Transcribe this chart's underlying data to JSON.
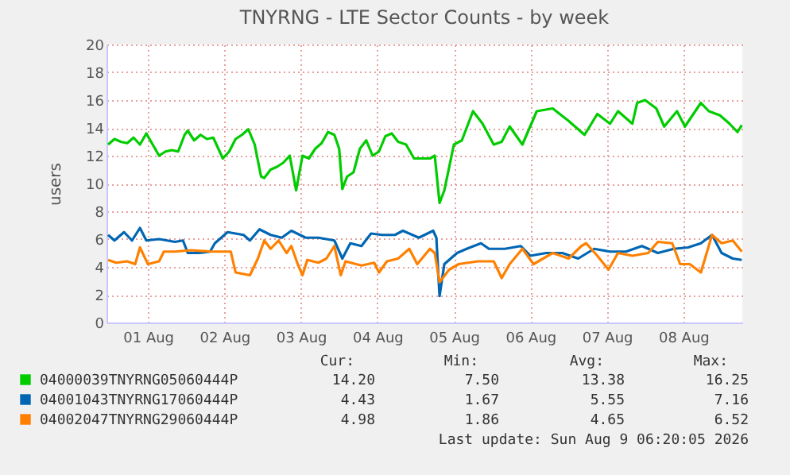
{
  "chart_data": {
    "type": "line",
    "title": "TNYRNG - LTE Sector Counts - by week",
    "ylabel": "users",
    "xlim": [
      "2026-07-31T23:00",
      "2026-08-09T06:30"
    ],
    "xticks": [
      {
        "value": "2026-08-01T12:00",
        "label": "01 Aug"
      },
      {
        "value": "2026-08-02T12:00",
        "label": "02 Aug"
      },
      {
        "value": "2026-08-03T12:00",
        "label": "03 Aug"
      },
      {
        "value": "2026-08-04T12:00",
        "label": "04 Aug"
      },
      {
        "value": "2026-08-05T12:00",
        "label": "05 Aug"
      },
      {
        "value": "2026-08-06T12:00",
        "label": "06 Aug"
      },
      {
        "value": "2026-08-07T12:00",
        "label": "07 Aug"
      },
      {
        "value": "2026-08-08T12:00",
        "label": "08 Aug"
      }
    ],
    "ylim": [
      0,
      20
    ],
    "yticks": [
      0,
      2,
      4,
      6,
      8,
      10,
      12,
      14,
      16,
      18,
      20
    ],
    "grid": true,
    "legend": "bottom",
    "marker": "none",
    "line_style": "solid",
    "series": [
      {
        "name": "04000039TNYRNG05060444P",
        "color": "#00cc00",
        "x": [
          "2026-07-31T23:30",
          "2026-08-01T01:30",
          "2026-08-01T03:30",
          "2026-08-01T05:30",
          "2026-08-01T07:30",
          "2026-08-01T09:30",
          "2026-08-01T11:30",
          "2026-08-01T13:30",
          "2026-08-01T15:30",
          "2026-08-01T17:30",
          "2026-08-01T19:30",
          "2026-08-01T21:30",
          "2026-08-01T23:30",
          "2026-08-02T00:30",
          "2026-08-02T02:30",
          "2026-08-02T04:30",
          "2026-08-02T06:30",
          "2026-08-02T08:30",
          "2026-08-02T11:30",
          "2026-08-02T13:30",
          "2026-08-02T15:30",
          "2026-08-02T17:30",
          "2026-08-02T19:30",
          "2026-08-02T21:30",
          "2026-08-02T23:30",
          "2026-08-03T00:30",
          "2026-08-03T02:30",
          "2026-08-03T04:30",
          "2026-08-03T06:30",
          "2026-08-03T08:30",
          "2026-08-03T10:30",
          "2026-08-03T12:30",
          "2026-08-03T14:30",
          "2026-08-03T16:30",
          "2026-08-03T18:30",
          "2026-08-03T20:30",
          "2026-08-03T22:30",
          "2026-08-04T00:00",
          "2026-08-04T01:00",
          "2026-08-04T02:30",
          "2026-08-04T04:30",
          "2026-08-04T06:30",
          "2026-08-04T08:30",
          "2026-08-04T10:30",
          "2026-08-04T12:30",
          "2026-08-04T14:30",
          "2026-08-04T16:30",
          "2026-08-04T18:30",
          "2026-08-04T21:00",
          "2026-08-04T23:30",
          "2026-08-05T04:30",
          "2026-08-05T06:00",
          "2026-08-05T07:30",
          "2026-08-05T09:00",
          "2026-08-05T12:00",
          "2026-08-05T14:30",
          "2026-08-05T18:00",
          "2026-08-05T21:00",
          "2026-08-06T00:30",
          "2026-08-06T03:00",
          "2026-08-06T05:30",
          "2026-08-06T09:30",
          "2026-08-06T14:00",
          "2026-08-06T19:00",
          "2026-08-07T00:00",
          "2026-08-07T05:00",
          "2026-08-07T09:00",
          "2026-08-07T13:00",
          "2026-08-07T15:30",
          "2026-08-07T20:00",
          "2026-08-07T21:30",
          "2026-08-08T00:00",
          "2026-08-08T03:30",
          "2026-08-08T06:00",
          "2026-08-08T10:00",
          "2026-08-08T12:30",
          "2026-08-08T17:30",
          "2026-08-08T20:00",
          "2026-08-08T23:30",
          "2026-08-09T02:30",
          "2026-08-09T05:00",
          "2026-08-09T06:20"
        ],
        "values": [
          12.8,
          13.2,
          13.0,
          12.9,
          13.3,
          12.8,
          13.6,
          12.8,
          12.0,
          12.3,
          12.4,
          12.3,
          13.5,
          13.8,
          13.1,
          13.5,
          13.2,
          13.3,
          11.8,
          12.3,
          13.2,
          13.5,
          13.9,
          12.8,
          10.5,
          10.4,
          11.0,
          11.2,
          11.5,
          12.0,
          9.5,
          12.0,
          11.8,
          12.5,
          12.9,
          13.7,
          13.5,
          12.5,
          9.6,
          10.5,
          10.8,
          12.5,
          13.1,
          12.0,
          12.3,
          13.4,
          13.6,
          13.0,
          12.8,
          11.8,
          11.8,
          12.0,
          8.6,
          9.5,
          12.8,
          13.1,
          15.2,
          14.3,
          12.8,
          13.0,
          14.1,
          12.8,
          15.2,
          15.4,
          14.5,
          13.5,
          15.0,
          14.3,
          15.2,
          14.3,
          15.8,
          16.0,
          15.4,
          14.1,
          15.2,
          14.1,
          15.8,
          15.2,
          14.9,
          14.3,
          13.7,
          14.2
        ]
      },
      {
        "name": "04001043TNYRNG17060444P",
        "color": "#0066b3",
        "x": [
          "2026-07-31T23:30",
          "2026-08-01T01:30",
          "2026-08-01T04:30",
          "2026-08-01T07:00",
          "2026-08-01T09:30",
          "2026-08-01T11:30",
          "2026-08-01T15:30",
          "2026-08-01T20:30",
          "2026-08-01T23:00",
          "2026-08-02T00:30",
          "2026-08-02T04:00",
          "2026-08-02T07:30",
          "2026-08-02T09:00",
          "2026-08-02T13:00",
          "2026-08-02T18:00",
          "2026-08-02T20:00",
          "2026-08-02T23:00",
          "2026-08-03T02:30",
          "2026-08-03T06:00",
          "2026-08-03T09:00",
          "2026-08-03T13:30",
          "2026-08-03T17:30",
          "2026-08-03T22:30",
          "2026-08-04T01:00",
          "2026-08-04T03:30",
          "2026-08-04T07:00",
          "2026-08-04T10:00",
          "2026-08-04T13:30",
          "2026-08-04T17:30",
          "2026-08-04T20:00",
          "2026-08-05T01:00",
          "2026-08-05T05:30",
          "2026-08-05T06:30",
          "2026-08-05T07:30",
          "2026-08-05T09:00",
          "2026-08-05T13:00",
          "2026-08-05T16:00",
          "2026-08-05T20:30",
          "2026-08-05T23:00",
          "2026-08-06T04:00",
          "2026-08-06T09:00",
          "2026-08-06T12:00",
          "2026-08-06T17:00",
          "2026-08-06T22:00",
          "2026-08-07T03:00",
          "2026-08-07T08:00",
          "2026-08-07T13:00",
          "2026-08-07T18:00",
          "2026-08-07T23:00",
          "2026-08-08T04:00",
          "2026-08-08T09:00",
          "2026-08-08T13:30",
          "2026-08-08T17:30",
          "2026-08-08T21:00",
          "2026-08-09T00:00",
          "2026-08-09T03:30",
          "2026-08-09T06:20"
        ],
        "values": [
          6.3,
          5.9,
          6.5,
          5.9,
          6.8,
          5.9,
          6.0,
          5.8,
          5.9,
          5.0,
          5.0,
          5.1,
          5.7,
          6.5,
          6.3,
          5.9,
          6.7,
          6.3,
          6.1,
          6.6,
          6.1,
          6.1,
          5.9,
          4.6,
          5.7,
          5.5,
          6.4,
          6.3,
          6.3,
          6.6,
          6.1,
          6.6,
          6.1,
          1.9,
          4.2,
          5.0,
          5.3,
          5.7,
          5.3,
          5.3,
          5.5,
          4.8,
          5.0,
          5.0,
          4.6,
          5.3,
          5.1,
          5.1,
          5.5,
          5.0,
          5.3,
          5.4,
          5.7,
          6.3,
          5.0,
          4.6,
          4.5
        ]
      },
      {
        "name": "04002047TNYRNG29060444P",
        "color": "#ff8000",
        "x": [
          "2026-07-31T23:30",
          "2026-08-01T02:00",
          "2026-08-01T05:30",
          "2026-08-01T08:00",
          "2026-08-01T09:30",
          "2026-08-01T12:00",
          "2026-08-01T15:30",
          "2026-08-01T17:00",
          "2026-08-01T20:30",
          "2026-08-02T01:30",
          "2026-08-02T08:00",
          "2026-08-02T14:00",
          "2026-08-02T15:30",
          "2026-08-02T20:00",
          "2026-08-02T22:30",
          "2026-08-03T00:30",
          "2026-08-03T02:30",
          "2026-08-03T05:00",
          "2026-08-03T07:30",
          "2026-08-03T09:00",
          "2026-08-03T11:00",
          "2026-08-03T12:30",
          "2026-08-03T14:00",
          "2026-08-03T17:30",
          "2026-08-03T20:00",
          "2026-08-03T22:30",
          "2026-08-04T00:30",
          "2026-08-04T02:00",
          "2026-08-04T07:00",
          "2026-08-04T11:00",
          "2026-08-04T12:30",
          "2026-08-04T15:00",
          "2026-08-04T18:30",
          "2026-08-04T22:00",
          "2026-08-05T00:30",
          "2026-08-05T04:30",
          "2026-08-05T06:00",
          "2026-08-05T07:30",
          "2026-08-05T10:30",
          "2026-08-05T13:30",
          "2026-08-05T19:30",
          "2026-08-06T00:30",
          "2026-08-06T03:00",
          "2026-08-06T05:30",
          "2026-08-06T09:30",
          "2026-08-06T13:00",
          "2026-08-06T19:00",
          "2026-08-07T00:00",
          "2026-08-07T04:00",
          "2026-08-07T05:30",
          "2026-08-07T09:00",
          "2026-08-07T12:30",
          "2026-08-07T15:30",
          "2026-08-07T20:00",
          "2026-08-08T01:00",
          "2026-08-08T04:00",
          "2026-08-08T08:30",
          "2026-08-08T11:00",
          "2026-08-08T14:00",
          "2026-08-08T17:30",
          "2026-08-08T21:00",
          "2026-08-09T00:00",
          "2026-08-09T03:30",
          "2026-08-09T06:20"
        ],
        "values": [
          4.5,
          4.3,
          4.4,
          4.2,
          5.4,
          4.2,
          4.4,
          5.1,
          5.1,
          5.2,
          5.1,
          5.1,
          3.6,
          3.4,
          4.6,
          5.9,
          5.3,
          5.9,
          5.0,
          5.5,
          4.2,
          3.4,
          4.5,
          4.3,
          4.6,
          5.5,
          3.4,
          4.4,
          4.1,
          4.3,
          3.6,
          4.4,
          4.6,
          5.3,
          4.2,
          5.3,
          5.0,
          2.9,
          3.8,
          4.2,
          4.4,
          4.4,
          3.2,
          4.2,
          5.3,
          4.2,
          5.0,
          4.6,
          5.5,
          5.7,
          4.8,
          3.8,
          5.0,
          4.8,
          5.0,
          5.8,
          5.7,
          4.2,
          4.2,
          3.6,
          6.3,
          5.7,
          5.9,
          5.1
        ]
      }
    ],
    "annotations": [
      "Cur:",
      "Min:",
      "Avg:",
      "Max:",
      "14.20",
      "7.50",
      "13.38",
      "16.25",
      "4.43",
      "1.67",
      "5.55",
      "7.16",
      "4.98",
      "1.86",
      "4.65",
      "6.52",
      "Last update: Sun Aug  9 06:20:05 2026"
    ]
  }
}
